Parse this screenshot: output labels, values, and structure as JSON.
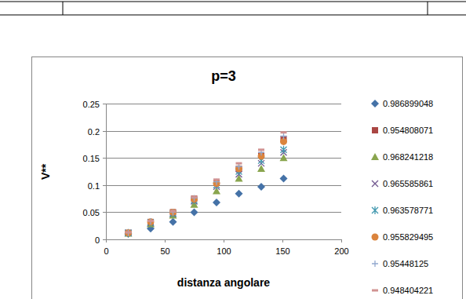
{
  "chart_data": {
    "type": "scatter",
    "title": "p=3",
    "x_label": "distanza angolare",
    "y_label": "V**",
    "x": [
      19,
      38,
      57,
      75,
      94,
      113,
      132,
      151
    ],
    "xlim": [
      0,
      200
    ],
    "xticks": [
      0,
      50,
      100,
      150,
      200
    ],
    "ylim": [
      0,
      0.25
    ],
    "yticks": [
      0,
      0.05,
      0.1,
      0.15,
      0.2,
      0.25
    ],
    "grid": "y",
    "legend": "right",
    "series": [
      {
        "name": "0.986899048",
        "color": "#4572a7",
        "marker": "diamond",
        "values": [
          0.01,
          0.02,
          0.032,
          0.05,
          0.068,
          0.084,
          0.097,
          0.112
        ]
      },
      {
        "name": "0.954808071",
        "color": "#aa4643",
        "marker": "square",
        "values": [
          0.012,
          0.032,
          0.05,
          0.075,
          0.104,
          0.13,
          0.155,
          0.185
        ]
      },
      {
        "name": "0.968241218",
        "color": "#89a54e",
        "marker": "triangle",
        "values": [
          0.011,
          0.028,
          0.044,
          0.064,
          0.089,
          0.112,
          0.13,
          0.15
        ]
      },
      {
        "name": "0.965585861",
        "color": "#71588f",
        "marker": "x",
        "values": [
          0.012,
          0.03,
          0.047,
          0.07,
          0.097,
          0.12,
          0.14,
          0.16
        ]
      },
      {
        "name": "0.963578771",
        "color": "#4198af",
        "marker": "star",
        "values": [
          0.012,
          0.031,
          0.048,
          0.072,
          0.1,
          0.125,
          0.145,
          0.165
        ]
      },
      {
        "name": "0.955829495",
        "color": "#db843d",
        "marker": "circle",
        "values": [
          0.012,
          0.032,
          0.05,
          0.074,
          0.103,
          0.13,
          0.153,
          0.18
        ]
      },
      {
        "name": "0.95448125",
        "color": "#93a9cf",
        "marker": "plus",
        "values": [
          0.012,
          0.033,
          0.05,
          0.076,
          0.106,
          0.134,
          0.16,
          0.19
        ]
      },
      {
        "name": "0.948404221",
        "color": "#d19392",
        "marker": "dash",
        "values": [
          0.013,
          0.034,
          0.052,
          0.078,
          0.11,
          0.14,
          0.165,
          0.197
        ]
      }
    ]
  }
}
